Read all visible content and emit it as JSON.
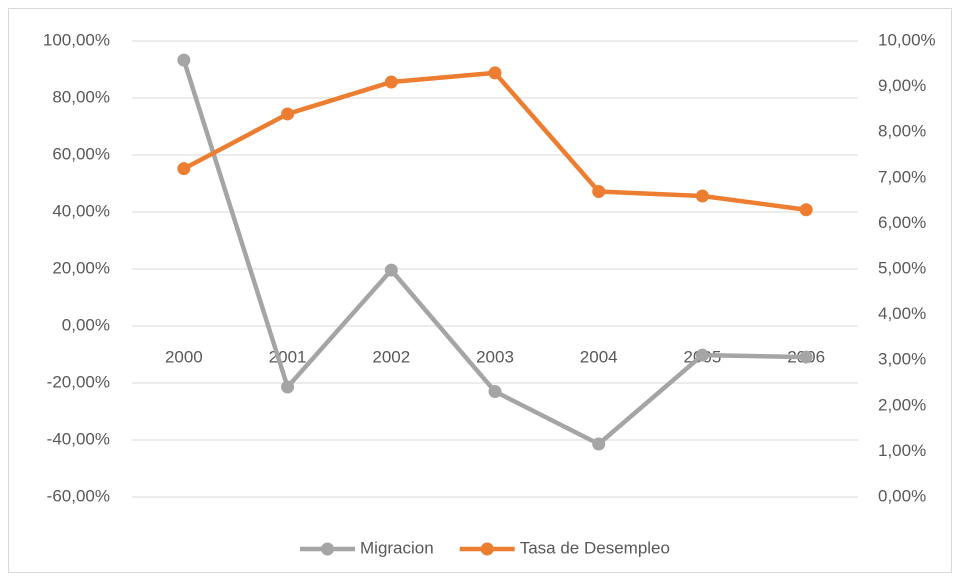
{
  "chart_data": {
    "type": "line",
    "categories": [
      "2000",
      "2001",
      "2002",
      "2003",
      "2004",
      "2005",
      "2006"
    ],
    "series": [
      {
        "name": "Migracion",
        "color": "#a5a5a5",
        "values": [
          93.3,
          -21.4,
          19.6,
          -23,
          -41.4,
          -10.2,
          -10.9
        ]
      },
      {
        "name": "Tasa de Desempleo",
        "color": "#ed7d31",
        "axis": "y2",
        "values": [
          7.2,
          8.4,
          9.1,
          9.3,
          6.7,
          6.6,
          6.3
        ]
      }
    ],
    "ylim": [
      -60,
      100
    ],
    "yticks": [
      {
        "value": -60,
        "label": "-60,00%"
      },
      {
        "value": -40,
        "label": "-40,00%"
      },
      {
        "value": -20,
        "label": "-20,00%"
      },
      {
        "value": 0,
        "label": "0,00%"
      },
      {
        "value": 20,
        "label": "20,00%"
      },
      {
        "value": 40,
        "label": "40,00%"
      },
      {
        "value": 60,
        "label": "60,00%"
      },
      {
        "value": 80,
        "label": "80,00%"
      },
      {
        "value": 100,
        "label": "100,00%"
      }
    ],
    "y2lim": [
      0,
      10
    ],
    "y2ticks": [
      {
        "value": 0,
        "label": "0,00%"
      },
      {
        "value": 1,
        "label": "1,00%"
      },
      {
        "value": 2,
        "label": "2,00%"
      },
      {
        "value": 3,
        "label": "3,00%"
      },
      {
        "value": 4,
        "label": "4,00%"
      },
      {
        "value": 5,
        "label": "5,00%"
      },
      {
        "value": 6,
        "label": "6,00%"
      },
      {
        "value": 7,
        "label": "7,00%"
      },
      {
        "value": 8,
        "label": "8,00%"
      },
      {
        "value": 9,
        "label": "9,00%"
      },
      {
        "value": 10,
        "label": "10,00%"
      }
    ],
    "grid": true,
    "legend": "bottom"
  }
}
